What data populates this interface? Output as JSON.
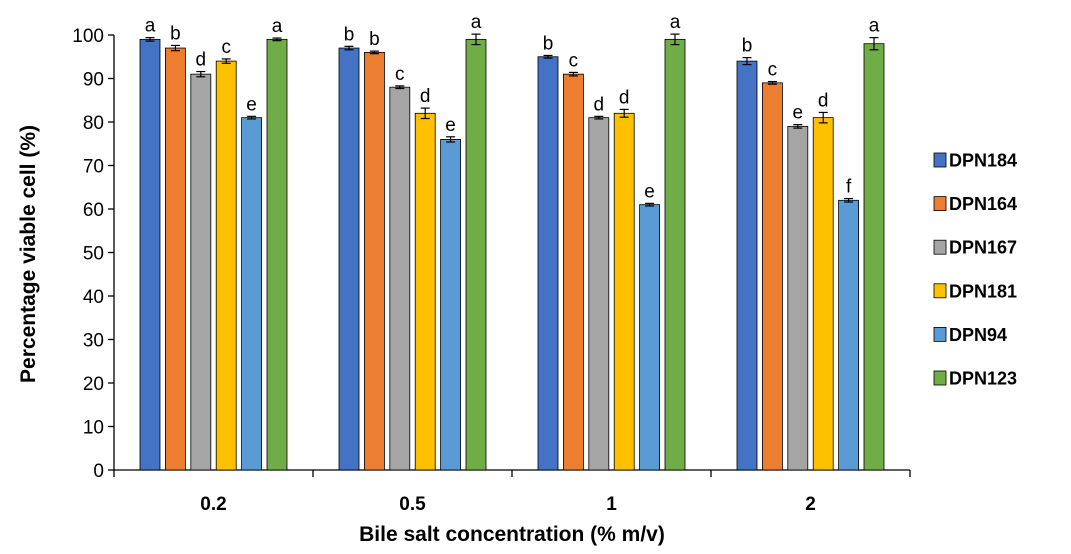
{
  "chart_data": {
    "type": "bar",
    "xlabel": "Bile salt concentration (% m/v)",
    "ylabel": "Percentage viable cell (%)",
    "ylim": [
      0,
      100
    ],
    "yticks": [
      "0",
      "10",
      "20",
      "30",
      "40",
      "50",
      "60",
      "70",
      "80",
      "90",
      "100"
    ],
    "categories": [
      "0.2",
      "0.5",
      "1",
      "2"
    ],
    "legend_position": "right",
    "grid": false,
    "series": [
      {
        "name": "DPN184",
        "color": "#4472C4",
        "values": [
          99,
          97,
          95,
          94
        ],
        "errors": [
          0.4,
          0.4,
          0.3,
          0.8
        ],
        "letters": [
          "a",
          "b",
          "b",
          "b"
        ]
      },
      {
        "name": "DPN164",
        "color": "#ED7D31",
        "values": [
          97,
          96,
          91,
          89
        ],
        "errors": [
          0.6,
          0.3,
          0.4,
          0.3
        ],
        "letters": [
          "b",
          "b",
          "c",
          "c"
        ]
      },
      {
        "name": "DPN167",
        "color": "#A5A5A5",
        "values": [
          91,
          88,
          81,
          79
        ],
        "errors": [
          0.6,
          0.3,
          0.3,
          0.4
        ],
        "letters": [
          "d",
          "c",
          "d",
          "e"
        ]
      },
      {
        "name": "DPN181",
        "color": "#FFC000",
        "values": [
          94,
          82,
          82,
          81
        ],
        "errors": [
          0.5,
          1.2,
          0.9,
          1.2
        ],
        "letters": [
          "c",
          "d",
          "d",
          "d"
        ]
      },
      {
        "name": "DPN94",
        "color": "#5B9BD5",
        "values": [
          81,
          76,
          61,
          62
        ],
        "errors": [
          0.3,
          0.6,
          0.3,
          0.4
        ],
        "letters": [
          "e",
          "e",
          "e",
          "f"
        ]
      },
      {
        "name": "DPN123",
        "color": "#70AD47",
        "values": [
          99,
          99,
          99,
          98
        ],
        "errors": [
          0.3,
          1.2,
          1.2,
          1.4
        ],
        "letters": [
          "a",
          "a",
          "a",
          "a"
        ]
      }
    ]
  }
}
